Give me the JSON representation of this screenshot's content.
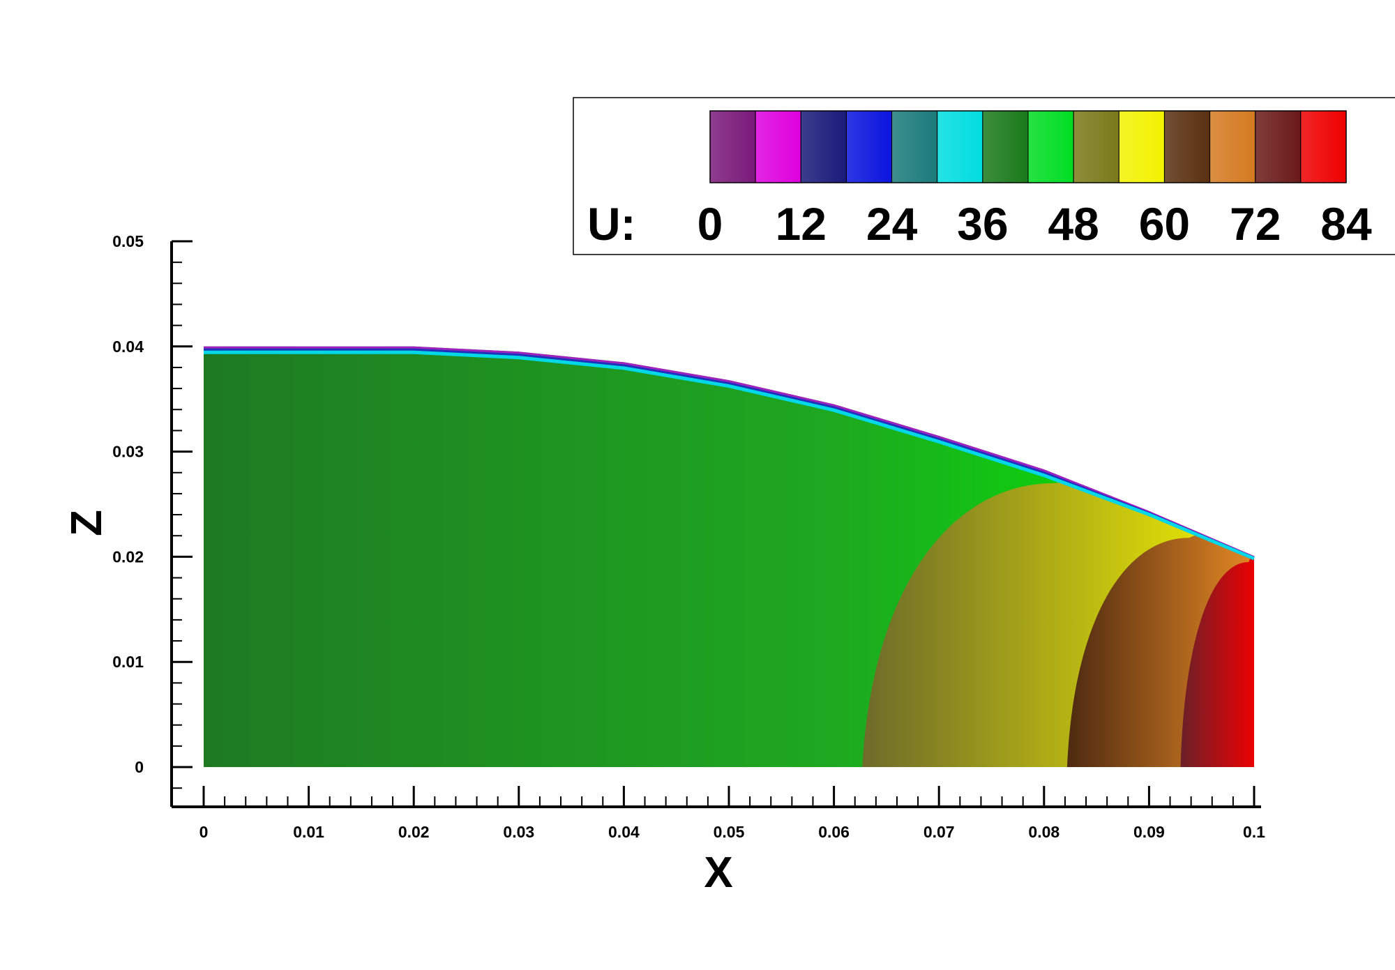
{
  "chart_data": {
    "type": "heatmap",
    "title": "",
    "xlabel": "X",
    "ylabel": "Z",
    "xlim": [
      0,
      0.1
    ],
    "ylim": [
      0,
      0.05
    ],
    "x_ticks": [
      "0",
      "0.01",
      "0.02",
      "0.03",
      "0.04",
      "0.05",
      "0.06",
      "0.07",
      "0.08",
      "0.09",
      "0.1"
    ],
    "y_ticks": [
      "0",
      "0.01",
      "0.02",
      "0.03",
      "0.04",
      "0.05"
    ],
    "domain_boundary": {
      "x": [
        0,
        0.02,
        0.03,
        0.04,
        0.05,
        0.06,
        0.07,
        0.08,
        0.09,
        0.1
      ],
      "z": [
        0.04,
        0.04,
        0.0395,
        0.0385,
        0.0368,
        0.0345,
        0.0315,
        0.0283,
        0.0243,
        0.02
      ]
    },
    "contour_fronts": [
      {
        "value": 60,
        "x_at_z0": 0.0627,
        "x_at_top": 0.081,
        "z_top": 0.027
      },
      {
        "value": 72,
        "x_at_z0": 0.0822,
        "x_at_top": 0.0938,
        "z_top": 0.0218
      },
      {
        "value": 84,
        "x_at_z0": 0.093,
        "x_at_top": 0.0995,
        "z_top": 0.0195
      }
    ],
    "colorbar": {
      "label": "U:",
      "tick_labels": [
        "0",
        "12",
        "24",
        "36",
        "48",
        "60",
        "72",
        "84"
      ],
      "band_colors": [
        "#7a1a7a",
        "#dd00dd",
        "#1a1a7a",
        "#0a14dd",
        "#1a7a7a",
        "#00dde0",
        "#1a7a1a",
        "#00dd22",
        "#7a7a1a",
        "#f2f200",
        "#5a3010",
        "#d47a20",
        "#6a1a18",
        "#ee0000"
      ]
    }
  }
}
